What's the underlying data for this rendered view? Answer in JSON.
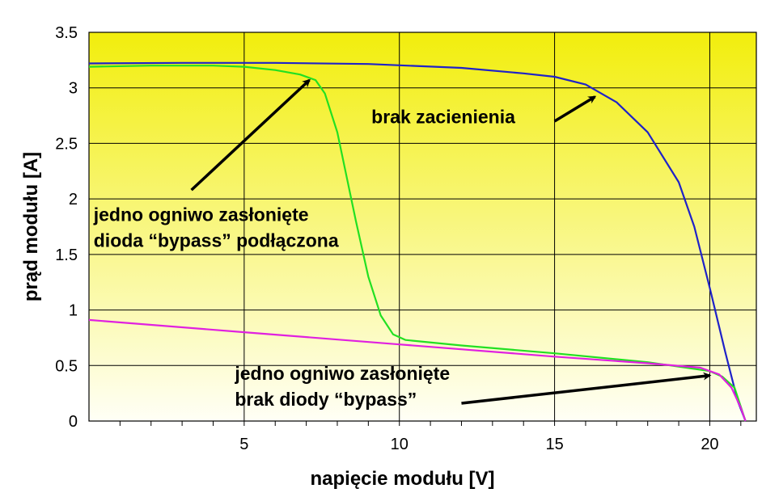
{
  "chart_data": {
    "type": "line",
    "title": "",
    "xlabel": "napięcie modułu [V]",
    "ylabel": "prąd modułu [A]",
    "xlim": [
      0,
      21.5
    ],
    "ylim": [
      0,
      3.5
    ],
    "x_ticks": [
      5,
      10,
      15,
      20
    ],
    "y_ticks": [
      0,
      0.5,
      1,
      1.5,
      2,
      2.5,
      3,
      3.5
    ],
    "x_tick_labels": [
      "5",
      "10",
      "15",
      "20"
    ],
    "y_tick_labels": [
      "0",
      "0.5",
      "1",
      "1.5",
      "2",
      "2.5",
      "3",
      "3.5"
    ],
    "grid": true,
    "background": "gradient yellow to white (top to bottom)",
    "colors": {
      "bg_top": "#f2ee0c",
      "bg_bottom": "#fffff6"
    },
    "series": [
      {
        "id": "no-shading",
        "color": "#1f22c8",
        "points": [
          [
            0,
            3.22
          ],
          [
            3,
            3.225
          ],
          [
            6,
            3.225
          ],
          [
            9,
            3.215
          ],
          [
            12,
            3.18
          ],
          [
            14,
            3.13
          ],
          [
            15,
            3.1
          ],
          [
            16,
            3.03
          ],
          [
            17,
            2.87
          ],
          [
            18,
            2.6
          ],
          [
            19,
            2.15
          ],
          [
            19.5,
            1.75
          ],
          [
            20,
            1.2
          ],
          [
            20.5,
            0.62
          ],
          [
            20.9,
            0.18
          ],
          [
            21.15,
            0.0
          ]
        ]
      },
      {
        "id": "one-cell-shaded-bypass",
        "color": "#22e022",
        "points": [
          [
            0,
            3.19
          ],
          [
            2,
            3.2
          ],
          [
            4,
            3.2
          ],
          [
            5,
            3.19
          ],
          [
            6,
            3.16
          ],
          [
            6.8,
            3.12
          ],
          [
            7.3,
            3.07
          ],
          [
            7.6,
            2.95
          ],
          [
            8.0,
            2.6
          ],
          [
            8.3,
            2.2
          ],
          [
            8.6,
            1.8
          ],
          [
            9.0,
            1.3
          ],
          [
            9.4,
            0.95
          ],
          [
            9.8,
            0.78
          ],
          [
            10.2,
            0.73
          ],
          [
            12,
            0.68
          ],
          [
            15,
            0.61
          ],
          [
            18,
            0.53
          ],
          [
            20,
            0.45
          ],
          [
            20.4,
            0.4
          ],
          [
            20.8,
            0.3
          ],
          [
            21.15,
            0.0
          ]
        ]
      },
      {
        "id": "one-cell-shaded-no-bypass",
        "color": "#e020e0",
        "points": [
          [
            0,
            0.91
          ],
          [
            5,
            0.8
          ],
          [
            10,
            0.69
          ],
          [
            15,
            0.58
          ],
          [
            18,
            0.52
          ],
          [
            19.7,
            0.48
          ],
          [
            20.3,
            0.42
          ],
          [
            20.7,
            0.3
          ],
          [
            21.0,
            0.12
          ],
          [
            21.15,
            0.0
          ]
        ]
      }
    ],
    "annotations": [
      {
        "id": "no-shading",
        "lines": [
          "brak zacienienia"
        ],
        "text_x": 9.1,
        "text_y": 2.68,
        "arrow_from": [
          15.0,
          2.7
        ],
        "arrow_to": [
          16.3,
          2.92
        ]
      },
      {
        "id": "one-cell-shaded-bypass",
        "lines": [
          "jedno ogniwo zasłonięte",
          "dioda “bypass” podłączona"
        ],
        "text_x": 0.15,
        "text_y": 1.8,
        "arrow_from": [
          3.3,
          2.08
        ],
        "arrow_to": [
          7.1,
          3.07
        ]
      },
      {
        "id": "one-cell-shaded-no-bypass",
        "lines": [
          "jedno ogniwo zasłonięte",
          "brak diody “bypass”"
        ],
        "text_x": 4.7,
        "text_y": 0.37,
        "arrow_from": [
          12.0,
          0.16
        ],
        "arrow_to": [
          20.0,
          0.41
        ]
      }
    ]
  }
}
